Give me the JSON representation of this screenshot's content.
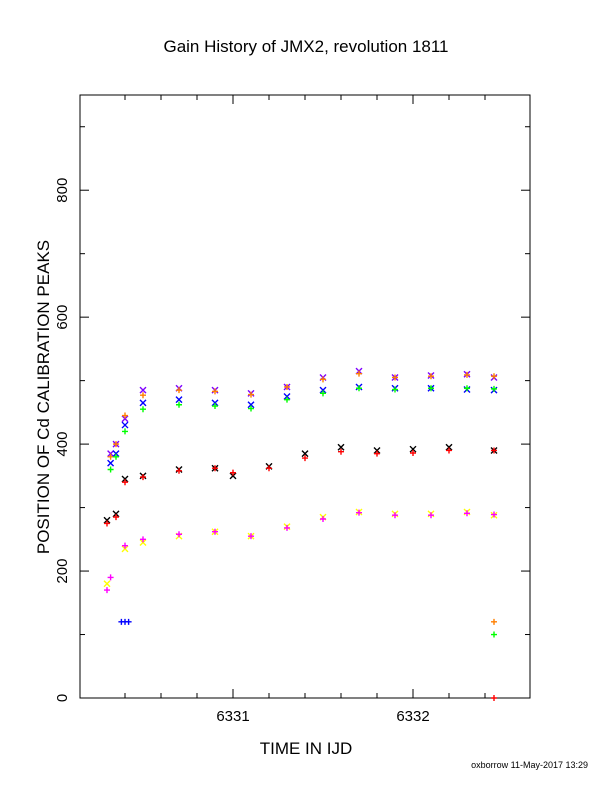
{
  "chart_data": {
    "type": "scatter",
    "title": "Gain History of JMX2, revolution 1811",
    "xlabel": "TIME IN IJD",
    "ylabel": "POSITION OF Cd CALIBRATION PEAKS",
    "xlim": [
      6330.15,
      6332.65
    ],
    "ylim": [
      0,
      950
    ],
    "xticks": [
      6331,
      6332
    ],
    "xtick_labels": [
      "6331",
      "6332"
    ],
    "yticks": [
      0,
      200,
      400,
      600,
      800
    ],
    "ytick_labels": [
      "0",
      "200",
      "400",
      "600",
      "800"
    ],
    "footer": "oxborrow 11-May-2017 13:29",
    "series": [
      {
        "color": "#7f00ff",
        "marker": "x",
        "x": [
          6330.32,
          6330.35,
          6330.4,
          6330.5,
          6330.7,
          6330.9,
          6331.1,
          6331.3,
          6331.5,
          6331.7,
          6331.9,
          6332.1,
          6332.3,
          6332.45
        ],
        "y": [
          385,
          400,
          440,
          485,
          488,
          485,
          480,
          490,
          505,
          515,
          505,
          508,
          510,
          505
        ]
      },
      {
        "color": "#ff7f00",
        "marker": "+",
        "x": [
          6330.32,
          6330.35,
          6330.4,
          6330.5,
          6330.7,
          6330.9,
          6331.1,
          6331.3,
          6331.5,
          6331.7,
          6331.9,
          6332.1,
          6332.3,
          6332.45
        ],
        "y": [
          380,
          400,
          445,
          477,
          485,
          483,
          478,
          490,
          502,
          511,
          505,
          507,
          509,
          507
        ]
      },
      {
        "color": "#0000ff",
        "marker": "x",
        "x": [
          6330.32,
          6330.35,
          6330.4,
          6330.5,
          6330.7,
          6330.9,
          6331.1,
          6331.3,
          6331.5,
          6331.7,
          6331.9,
          6332.1,
          6332.3,
          6332.45
        ],
        "y": [
          370,
          385,
          430,
          465,
          470,
          465,
          462,
          475,
          485,
          490,
          488,
          488,
          486,
          485
        ]
      },
      {
        "color": "#00ff00",
        "marker": "+",
        "x": [
          6330.32,
          6330.35,
          6330.4,
          6330.5,
          6330.7,
          6330.9,
          6331.1,
          6331.3,
          6331.5,
          6331.7,
          6331.9,
          6332.1,
          6332.3,
          6332.45
        ],
        "y": [
          360,
          380,
          420,
          455,
          462,
          460,
          456,
          470,
          480,
          488,
          486,
          488,
          488,
          487
        ]
      },
      {
        "color": "#000000",
        "marker": "x",
        "x": [
          6330.3,
          6330.35,
          6330.4,
          6330.5,
          6330.7,
          6330.9,
          6331.0,
          6331.2,
          6331.4,
          6331.6,
          6331.8,
          6332.0,
          6332.2,
          6332.45
        ],
        "y": [
          280,
          290,
          345,
          350,
          360,
          362,
          350,
          365,
          385,
          395,
          390,
          392,
          395,
          390
        ]
      },
      {
        "color": "#ff0000",
        "marker": "+",
        "x": [
          6330.3,
          6330.35,
          6330.4,
          6330.5,
          6330.7,
          6330.9,
          6331.0,
          6331.2,
          6331.4,
          6331.6,
          6331.8,
          6332.0,
          6332.2,
          6332.45
        ],
        "y": [
          275,
          285,
          340,
          348,
          358,
          362,
          355,
          362,
          378,
          388,
          385,
          386,
          390,
          390
        ]
      },
      {
        "color": "#ffff00",
        "marker": "x",
        "x": [
          6330.3,
          6330.4,
          6330.5,
          6330.7,
          6330.9,
          6331.1,
          6331.3,
          6331.5,
          6331.7,
          6331.9,
          6332.1,
          6332.3,
          6332.45
        ],
        "y": [
          180,
          235,
          245,
          255,
          262,
          255,
          270,
          285,
          293,
          290,
          290,
          293,
          288
        ]
      },
      {
        "color": "#ff00ff",
        "marker": "+",
        "x": [
          6330.3,
          6330.32,
          6330.4,
          6330.5,
          6330.7,
          6330.9,
          6331.1,
          6331.3,
          6331.5,
          6331.7,
          6331.9,
          6332.1,
          6332.3,
          6332.45
        ],
        "y": [
          170,
          190,
          240,
          250,
          258,
          262,
          255,
          268,
          282,
          292,
          288,
          288,
          291,
          289
        ]
      },
      {
        "color": "#0000ff",
        "marker": "+",
        "x": [
          6330.38,
          6330.4,
          6330.42
        ],
        "y": [
          120,
          120,
          120
        ]
      },
      {
        "color": "#ff7f00",
        "marker": "+",
        "x": [
          6332.45
        ],
        "y": [
          120
        ]
      },
      {
        "color": "#00ff00",
        "marker": "+",
        "x": [
          6332.45
        ],
        "y": [
          100
        ]
      },
      {
        "color": "#ff0000",
        "marker": "+",
        "x": [
          6332.45
        ],
        "y": [
          0
        ]
      }
    ]
  }
}
